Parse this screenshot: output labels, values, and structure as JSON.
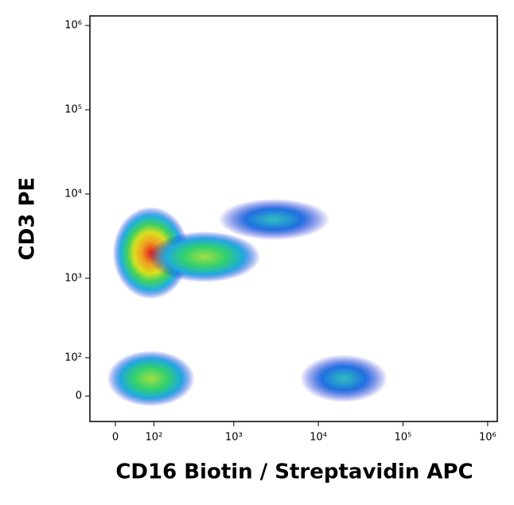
{
  "chart_data": {
    "type": "density",
    "xlabel": "CD16 Biotin / Streptavidin APC",
    "ylabel": "CD3 PE",
    "scale": "logicle",
    "xlim": [
      -60,
      1300000
    ],
    "ylim": [
      -60,
      1300000
    ],
    "xticks": [
      0,
      {
        "value": 100,
        "label": "10²"
      },
      {
        "value": 1000,
        "label": "10³"
      },
      {
        "value": 10000,
        "label": "10⁴"
      },
      {
        "value": 100000,
        "label": "10⁵"
      },
      {
        "value": 1000000,
        "label": "10⁶"
      }
    ],
    "yticks": [
      0,
      {
        "value": 100,
        "label": "10²"
      },
      {
        "value": 1000,
        "label": "10³"
      },
      {
        "value": 10000,
        "label": "10⁴"
      },
      {
        "value": 100000,
        "label": "10⁵"
      },
      {
        "value": 1000000,
        "label": "10⁶"
      }
    ],
    "populations": [
      {
        "x": 90,
        "y": 2000
      },
      {
        "x": 450,
        "y": 1800
      },
      {
        "x": 3000,
        "y": 5000
      },
      {
        "x": 90,
        "y": 40
      },
      {
        "x": 20000,
        "y": 40
      }
    ]
  }
}
